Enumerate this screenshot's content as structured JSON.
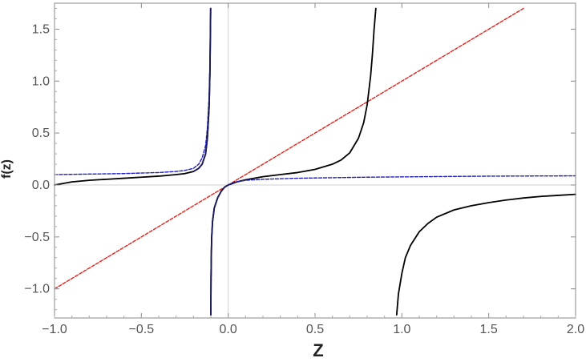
{
  "chart_data": {
    "type": "line",
    "title": "",
    "xlabel": "Z",
    "ylabel": "f(z)",
    "xlim": [
      -1.0,
      2.0
    ],
    "ylim": [
      -1.28,
      1.75
    ],
    "xticks": [
      -1.0,
      -0.5,
      0.0,
      0.5,
      1.0,
      1.5,
      2.0
    ],
    "xtick_labels": [
      "−1.0",
      "−0.5",
      "0.0",
      "0.5",
      "1.0",
      "1.5",
      "2.0"
    ],
    "yticks": [
      -1.0,
      -0.5,
      0.0,
      0.5,
      1.0,
      1.5
    ],
    "ytick_labels": [
      "−1.0",
      "−0.5",
      "0.0",
      "0.5",
      "1.0",
      "1.5"
    ],
    "grid": false,
    "legend": "none",
    "series": [
      {
        "style": "dashed",
        "color": "#e8211b",
        "x": [
          -1.0,
          1.7
        ],
        "y": [
          -1.0,
          1.7
        ]
      },
      {
        "style": "solid",
        "color": "#000000",
        "x": [
          -1.0,
          -0.9,
          -0.8,
          -0.7,
          -0.6,
          -0.5,
          -0.4,
          -0.3,
          -0.25,
          -0.2,
          -0.17,
          -0.15,
          -0.13,
          -0.12,
          -0.11,
          -0.105,
          -0.103,
          -0.101
        ],
        "y": [
          0.0,
          0.03,
          0.045,
          0.055,
          0.065,
          0.075,
          0.085,
          0.1,
          0.11,
          0.13,
          0.16,
          0.2,
          0.3,
          0.45,
          0.75,
          1.1,
          1.4,
          1.7
        ]
      },
      {
        "style": "solid",
        "color": "#000000",
        "x": [
          -0.1,
          -0.099,
          -0.097,
          -0.095,
          -0.09,
          -0.08,
          -0.06,
          -0.04,
          -0.02,
          0.0,
          0.05,
          0.1,
          0.2,
          0.3,
          0.4,
          0.5,
          0.6,
          0.65,
          0.7,
          0.75,
          0.78,
          0.8,
          0.82,
          0.83,
          0.84,
          0.85
        ],
        "y": [
          -1.25,
          -0.9,
          -0.65,
          -0.5,
          -0.35,
          -0.22,
          -0.12,
          -0.06,
          -0.02,
          0.0,
          0.03,
          0.05,
          0.08,
          0.1,
          0.12,
          0.15,
          0.2,
          0.24,
          0.31,
          0.45,
          0.6,
          0.77,
          1.05,
          1.25,
          1.5,
          1.7
        ]
      },
      {
        "style": "solid",
        "color": "#000000",
        "x": [
          0.97,
          0.98,
          1.0,
          1.02,
          1.05,
          1.1,
          1.15,
          1.2,
          1.3,
          1.4,
          1.5,
          1.6,
          1.7,
          1.8,
          1.9,
          2.0
        ],
        "y": [
          -1.25,
          -1.05,
          -0.85,
          -0.7,
          -0.58,
          -0.45,
          -0.37,
          -0.31,
          -0.24,
          -0.2,
          -0.17,
          -0.145,
          -0.125,
          -0.11,
          -0.1,
          -0.09
        ]
      },
      {
        "style": "dashed",
        "color": "#1f1fc8",
        "x": [
          -1.0,
          -0.8,
          -0.6,
          -0.4,
          -0.3,
          -0.25,
          -0.2,
          -0.17,
          -0.15,
          -0.13,
          -0.12,
          -0.11,
          -0.105,
          -0.102
        ],
        "y": [
          0.1,
          0.105,
          0.11,
          0.12,
          0.13,
          0.14,
          0.16,
          0.2,
          0.26,
          0.38,
          0.55,
          0.85,
          1.2,
          1.6
        ]
      },
      {
        "style": "dashed",
        "color": "#1f1fc8",
        "x": [
          -0.1,
          -0.097,
          -0.095,
          -0.09,
          -0.08,
          -0.06,
          -0.04,
          -0.02,
          0.0,
          0.03,
          0.1,
          0.2,
          0.4,
          0.6,
          0.8,
          1.0,
          1.2,
          1.5,
          1.8,
          2.0
        ],
        "y": [
          -1.25,
          -0.7,
          -0.5,
          -0.34,
          -0.22,
          -0.12,
          -0.06,
          -0.02,
          0.0,
          0.025,
          0.045,
          0.055,
          0.065,
          0.07,
          0.075,
          0.078,
          0.081,
          0.085,
          0.087,
          0.088
        ]
      },
      {
        "style": "solid",
        "color": "#1a1a5a",
        "x": [
          -0.1,
          -0.099,
          -0.097,
          -0.095,
          -0.09,
          -0.08,
          -0.06,
          -0.04,
          -0.02,
          0.0
        ],
        "y": [
          -1.25,
          -0.9,
          -0.65,
          -0.5,
          -0.35,
          -0.22,
          -0.12,
          -0.06,
          -0.02,
          0.0
        ]
      },
      {
        "style": "solid",
        "color": "#1a1a5a",
        "x": [
          -0.2,
          -0.17,
          -0.15,
          -0.13,
          -0.12,
          -0.11,
          -0.105,
          -0.103,
          -0.101
        ],
        "y": [
          0.13,
          0.16,
          0.2,
          0.3,
          0.45,
          0.75,
          1.1,
          1.4,
          1.7
        ]
      }
    ]
  }
}
